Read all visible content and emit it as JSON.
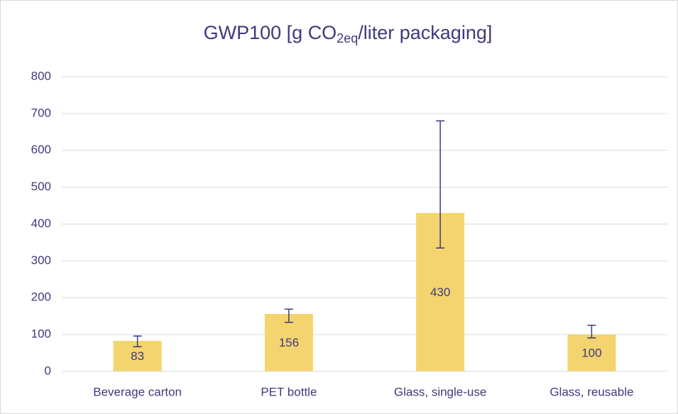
{
  "chart_data": {
    "type": "bar",
    "title": {
      "text": "GWP100 [g CO",
      "subscript": "2eq",
      "tail": "/liter packaging]"
    },
    "categories": [
      "Beverage carton",
      "PET bottle",
      "Glass, single-use",
      "Glass, reusable"
    ],
    "values": [
      83,
      156,
      430,
      100
    ],
    "error_minus": [
      16,
      23,
      95,
      9
    ],
    "error_plus": [
      13,
      13,
      250,
      25
    ],
    "color": "#f3d46e",
    "error_color": "#3f3a7c",
    "ylim": [
      0,
      800
    ],
    "yticks": [
      0,
      100,
      200,
      300,
      400,
      500,
      600,
      700,
      800
    ],
    "grid": true
  }
}
